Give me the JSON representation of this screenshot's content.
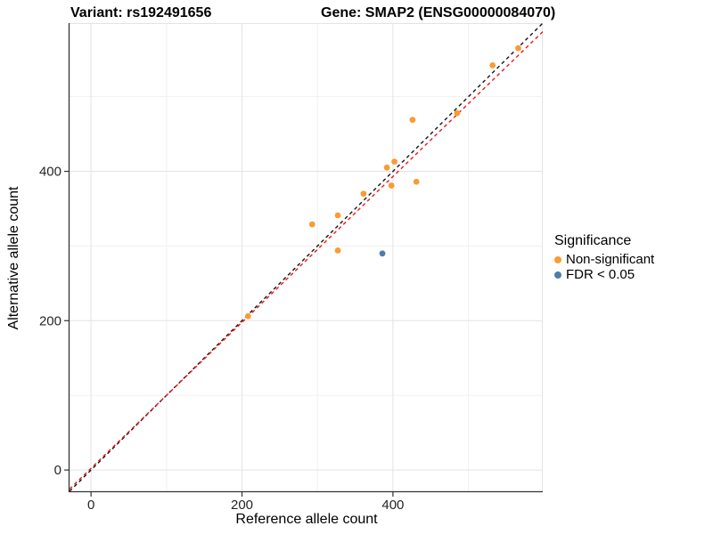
{
  "titles": {
    "variant": "Variant: rs192491656",
    "gene": "Gene: SMAP2 (ENSG00000084070)"
  },
  "chart_data": {
    "type": "scatter",
    "xlabel": "Reference allele count",
    "ylabel": "Alternative allele count",
    "xlim": [
      -28.5,
      598.5
    ],
    "ylim": [
      -28.5,
      598.5
    ],
    "major_ticks": [
      0,
      200,
      400
    ],
    "major_gridlines": [
      0,
      200,
      400,
      600
    ],
    "minor_gridlines": [
      100,
      300,
      500
    ],
    "grid": true,
    "series": [
      {
        "name": "Non-significant",
        "color": "#F89C35",
        "points": [
          [
            208,
            206
          ],
          [
            293,
            329
          ],
          [
            327,
            294
          ],
          [
            327,
            341
          ],
          [
            361,
            370
          ],
          [
            392,
            405
          ],
          [
            398,
            381
          ],
          [
            402,
            413
          ],
          [
            426,
            469
          ],
          [
            431,
            386
          ],
          [
            485,
            478
          ],
          [
            532,
            542
          ],
          [
            566,
            565
          ]
        ]
      },
      {
        "name": "FDR < 0.05",
        "color": "#4D7EAB",
        "points": [
          [
            386,
            290
          ]
        ]
      }
    ],
    "lines": [
      {
        "name": "identity-line",
        "slope": 1,
        "intercept": 0,
        "color": "#141414",
        "dash": "4 3.5"
      },
      {
        "name": "trend-line",
        "slope": 0.977,
        "intercept": 2.3,
        "color": "#F01616",
        "dash": "4 3.5"
      }
    ],
    "legend": {
      "title": "Significance",
      "position": "right",
      "items": [
        {
          "label": "Non-significant",
          "color": "#F89C35"
        },
        {
          "label": "FDR < 0.05",
          "color": "#4D7EAB"
        }
      ]
    },
    "style": {
      "grid_major_color": "#E3E3E3",
      "grid_minor_color": "#F1F1F1",
      "axis_color": "#333333",
      "tick_label_color": "#262626",
      "point_radius": 3.4
    }
  }
}
